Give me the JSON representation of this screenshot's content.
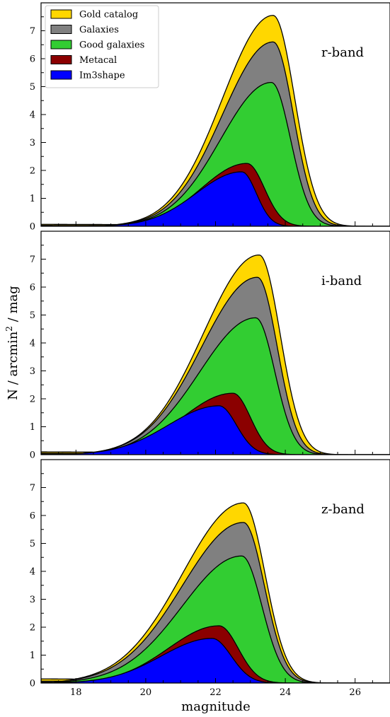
{
  "figure": {
    "xlabel": "magnitude",
    "ylabel_prefix": "N / arcmin",
    "ylabel_sup": "2",
    "ylabel_suffix": " / mag"
  },
  "chart_data": [
    {
      "type": "area",
      "annotation": "r-band",
      "xlim": [
        17,
        27
      ],
      "ylim": [
        0,
        8
      ],
      "x_ticks": [
        18,
        20,
        22,
        24,
        26
      ],
      "y_ticks": [
        0,
        1,
        2,
        3,
        4,
        5,
        6,
        7
      ],
      "legend": "top-left",
      "series": [
        {
          "name": "Gold catalog",
          "color": "#FFD700",
          "peak_x": 23.65,
          "peak_y": 7.55,
          "width_left": 1.45,
          "width_right": 0.62,
          "tail_x": 17.0,
          "tail_y": 0.07
        },
        {
          "name": "Galaxies",
          "color": "#808080",
          "peak_x": 23.65,
          "peak_y": 6.6,
          "width_left": 1.45,
          "width_right": 0.58,
          "tail_x": 17.0,
          "tail_y": 0.03
        },
        {
          "name": "Good galaxies",
          "color": "#32CD32",
          "peak_x": 23.6,
          "peak_y": 5.15,
          "width_left": 1.45,
          "width_right": 0.55,
          "tail_x": 17.0,
          "tail_y": 0.02
        },
        {
          "name": "Metacal",
          "color": "#8B0000",
          "peak_x": 22.9,
          "peak_y": 2.25,
          "width_left": 1.3,
          "width_right": 0.5,
          "tail_x": 17.0,
          "tail_y": 0.0
        },
        {
          "name": "Im3shape",
          "color": "#0000FF",
          "peak_x": 22.75,
          "peak_y": 1.95,
          "width_left": 1.3,
          "width_right": 0.42,
          "tail_x": 17.0,
          "tail_y": 0.0
        }
      ]
    },
    {
      "type": "area",
      "annotation": "i-band",
      "xlim": [
        17,
        27
      ],
      "ylim": [
        0,
        8
      ],
      "x_ticks": [
        18,
        20,
        22,
        24,
        26
      ],
      "y_ticks": [
        0,
        1,
        2,
        3,
        4,
        5,
        6,
        7
      ],
      "series": [
        {
          "name": "Gold catalog",
          "color": "#FFD700",
          "peak_x": 23.25,
          "peak_y": 7.15,
          "width_left": 1.6,
          "width_right": 0.6,
          "tail_x": 17.0,
          "tail_y": 0.1
        },
        {
          "name": "Galaxies",
          "color": "#808080",
          "peak_x": 23.2,
          "peak_y": 6.35,
          "width_left": 1.6,
          "width_right": 0.57,
          "tail_x": 17.0,
          "tail_y": 0.05
        },
        {
          "name": "Good galaxies",
          "color": "#32CD32",
          "peak_x": 23.15,
          "peak_y": 4.9,
          "width_left": 1.6,
          "width_right": 0.55,
          "tail_x": 17.0,
          "tail_y": 0.02
        },
        {
          "name": "Metacal",
          "color": "#8B0000",
          "peak_x": 22.5,
          "peak_y": 2.2,
          "width_left": 1.45,
          "width_right": 0.5,
          "tail_x": 17.0,
          "tail_y": 0.0
        },
        {
          "name": "Im3shape",
          "color": "#0000FF",
          "peak_x": 22.1,
          "peak_y": 1.75,
          "width_left": 1.45,
          "width_right": 0.5,
          "tail_x": 17.0,
          "tail_y": 0.0
        }
      ]
    },
    {
      "type": "area",
      "annotation": "z-band",
      "xlim": [
        17,
        27
      ],
      "ylim": [
        0,
        8
      ],
      "x_ticks": [
        18,
        20,
        22,
        24,
        26
      ],
      "y_ticks": [
        0,
        1,
        2,
        3,
        4,
        5,
        6,
        7
      ],
      "series": [
        {
          "name": "Gold catalog",
          "color": "#FFD700",
          "peak_x": 22.8,
          "peak_y": 6.45,
          "width_left": 1.75,
          "width_right": 0.62,
          "tail_x": 17.0,
          "tail_y": 0.15
        },
        {
          "name": "Galaxies",
          "color": "#808080",
          "peak_x": 22.8,
          "peak_y": 5.75,
          "width_left": 1.75,
          "width_right": 0.6,
          "tail_x": 17.0,
          "tail_y": 0.07
        },
        {
          "name": "Good galaxies",
          "color": "#32CD32",
          "peak_x": 22.75,
          "peak_y": 4.55,
          "width_left": 1.7,
          "width_right": 0.58,
          "tail_x": 17.0,
          "tail_y": 0.03
        },
        {
          "name": "Metacal",
          "color": "#8B0000",
          "peak_x": 22.1,
          "peak_y": 2.05,
          "width_left": 1.45,
          "width_right": 0.55,
          "tail_x": 17.0,
          "tail_y": 0.0
        },
        {
          "name": "Im3shape",
          "color": "#0000FF",
          "peak_x": 21.9,
          "peak_y": 1.6,
          "width_left": 1.45,
          "width_right": 0.55,
          "tail_x": 17.0,
          "tail_y": 0.0
        }
      ]
    }
  ]
}
